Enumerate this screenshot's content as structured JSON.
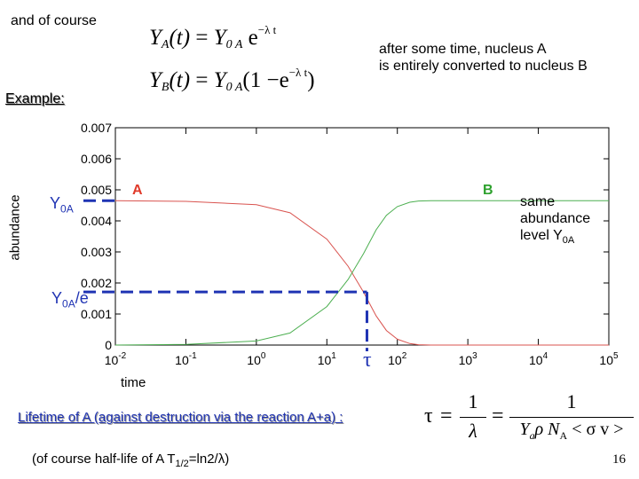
{
  "slide": {
    "intro": "and of course",
    "formula_A": {
      "lhs": "Y",
      "lhs_sub": "A",
      "arg": "(t)",
      "eq": "=",
      "coef": "Y",
      "coef_sub": "0 A",
      "exp_base": "e",
      "exp": "−λ t"
    },
    "formula_B": {
      "lhs": "Y",
      "lhs_sub": "B",
      "arg": "(t)",
      "eq": "=",
      "coef": "Y",
      "coef_sub": "0 A",
      "paren_open": "(1 −",
      "exp_base": "e",
      "exp": "−λ t",
      "paren_close": ")"
    },
    "note": [
      "after some time, nucleus A",
      "is entirely converted to nucleus B"
    ],
    "example": "Example:",
    "y0a_label": {
      "main": "Y",
      "sub": "0A"
    },
    "y0ae_label": {
      "main": "Y",
      "sub": "0A",
      "rest": "/e"
    },
    "tau_symbol": "τ",
    "same_level": {
      "line1": "same",
      "line2": "abundance",
      "line3_main": "level Y",
      "line3_sub": "0A"
    },
    "lifetime": "Lifetime of A (against destruction via the reaction A+a) :",
    "lifetime_formula": {
      "tau": "τ",
      "eq1": "=",
      "num1": "1",
      "den1": "λ",
      "eq2": "=",
      "num2": "1",
      "den2_a": "Y",
      "den2_sub": "a",
      "den2_b": "ρ N",
      "den2_sub2": "A",
      "den2_c": "< σ v >"
    },
    "halflife": {
      "prefix": "(of course half-life of A T",
      "sub": "1/2",
      "rest": "=ln2/λ)"
    },
    "page_number": "16"
  },
  "chart_data": {
    "type": "line",
    "title": "",
    "xlabel": "time",
    "ylabel": "abundance",
    "xscale": "log",
    "xlim": [
      0.01,
      100000
    ],
    "ylim": [
      0,
      0.007
    ],
    "x_ticks": [
      {
        "base": "10",
        "exp": "-2"
      },
      {
        "base": "10",
        "exp": "-1"
      },
      {
        "base": "10",
        "exp": "0"
      },
      {
        "base": "10",
        "exp": "1"
      },
      {
        "base": "10",
        "exp": "2"
      },
      {
        "base": "10",
        "exp": "3"
      },
      {
        "base": "10",
        "exp": "4"
      },
      {
        "base": "10",
        "exp": "5"
      }
    ],
    "y_ticks": [
      "0",
      "0.001",
      "0.002",
      "0.003",
      "0.004",
      "0.005",
      "0.006",
      "0.007"
    ],
    "y0a": 0.00465,
    "tau": 33,
    "series": [
      {
        "name": "A",
        "color": "#d9534f",
        "x": [
          0.01,
          0.1,
          1,
          3,
          10,
          20,
          33,
          50,
          70,
          100,
          150,
          200,
          300,
          1000,
          100000
        ],
        "y": [
          0.00465,
          0.00463,
          0.00452,
          0.00426,
          0.00341,
          0.00254,
          0.00171,
          0.00094,
          0.00047,
          0.00019,
          5e-05,
          1e-05,
          0.0,
          0.0,
          0.0
        ]
      },
      {
        "name": "B",
        "color": "#4caf50",
        "x": [
          0.01,
          0.1,
          1,
          3,
          10,
          20,
          33,
          50,
          70,
          100,
          150,
          200,
          300,
          1000,
          100000
        ],
        "y": [
          0.0,
          2e-05,
          0.00013,
          0.00039,
          0.00124,
          0.00211,
          0.00294,
          0.00371,
          0.00418,
          0.00446,
          0.0046,
          0.00464,
          0.00465,
          0.00465,
          0.00465
        ]
      }
    ],
    "grid": false,
    "legend": "labels on curves"
  }
}
